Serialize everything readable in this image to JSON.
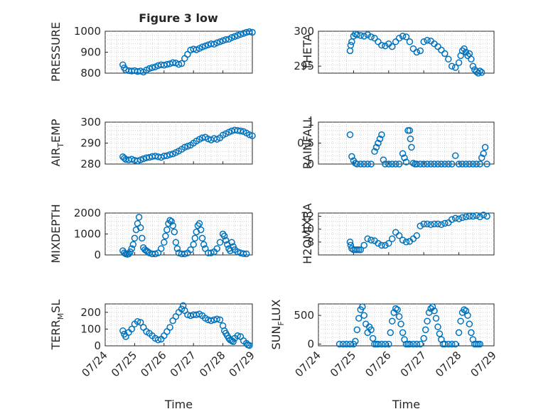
{
  "figure": {
    "title": "Figure 3 low",
    "xlabel": "Time",
    "xticklabels": [
      "07/24",
      "07/25",
      "07/26",
      "07/27",
      "07/28",
      "07/29"
    ],
    "marker_color": "#0072BD"
  },
  "chart_data": [
    {
      "type": "scatter",
      "name": "pressure",
      "ylabel_main": "PRESSURE",
      "ylabel_sub": "",
      "ylabel_tail": "",
      "title": "Figure 3 low",
      "xlabel": "",
      "xlim": [
        0,
        5
      ],
      "ylim": [
        800,
        1000
      ],
      "yticks": [
        800,
        900,
        1000
      ],
      "grid": true,
      "x": [
        0.6,
        0.65,
        0.7,
        0.8,
        0.9,
        1.0,
        1.1,
        1.2,
        1.3,
        1.4,
        1.5,
        1.6,
        1.7,
        1.8,
        1.9,
        2.0,
        2.1,
        2.2,
        2.3,
        2.4,
        2.5,
        2.6,
        2.7,
        2.8,
        2.9,
        3.0,
        3.1,
        3.2,
        3.3,
        3.4,
        3.5,
        3.6,
        3.7,
        3.8,
        3.9,
        4.0,
        4.1,
        4.2,
        4.3,
        4.4,
        4.5,
        4.6,
        4.7,
        4.8,
        4.9,
        5.0
      ],
      "y": [
        840,
        825,
        815,
        812,
        810,
        812,
        808,
        810,
        805,
        815,
        822,
        826,
        830,
        836,
        840,
        838,
        842,
        845,
        850,
        848,
        842,
        846,
        870,
        890,
        910,
        915,
        912,
        918,
        925,
        930,
        935,
        940,
        938,
        945,
        950,
        955,
        960,
        962,
        970,
        975,
        980,
        985,
        990,
        995,
        998,
        995
      ]
    },
    {
      "type": "scatter",
      "name": "theta",
      "ylabel_main": "THETA",
      "ylabel_sub": "",
      "ylabel_tail": "",
      "title": "",
      "xlabel": "",
      "xlim": [
        0,
        5
      ],
      "ylim": [
        294,
        300
      ],
      "yticks": [
        295,
        300
      ],
      "grid": true,
      "x": [
        0.9,
        0.92,
        0.95,
        1.0,
        1.05,
        1.1,
        1.2,
        1.3,
        1.4,
        1.5,
        1.6,
        1.7,
        1.8,
        1.9,
        2.0,
        2.1,
        2.2,
        2.3,
        2.4,
        2.5,
        2.6,
        2.7,
        2.8,
        2.9,
        3.0,
        3.1,
        3.2,
        3.3,
        3.4,
        3.5,
        3.6,
        3.7,
        3.8,
        3.9,
        4.0,
        4.05,
        4.1,
        4.15,
        4.2,
        4.25,
        4.3,
        4.35,
        4.4,
        4.45,
        4.5,
        4.55,
        4.6,
        4.65
      ],
      "y": [
        297.2,
        298.0,
        298.5,
        299.3,
        299.6,
        299.5,
        299.4,
        299.3,
        299.5,
        299.2,
        299.0,
        298.5,
        298.0,
        297.9,
        298.2,
        297.8,
        298.5,
        299.0,
        299.3,
        299.2,
        298.5,
        297.5,
        297.0,
        297.2,
        298.5,
        298.7,
        298.6,
        298.2,
        297.8,
        297.3,
        296.8,
        296.0,
        295.0,
        294.8,
        295.5,
        296.5,
        297.2,
        297.5,
        297.0,
        296.5,
        296.8,
        296.0,
        295.0,
        294.5,
        294.2,
        294.0,
        294.3,
        294.1
      ]
    },
    {
      "type": "scatter",
      "name": "air_temp",
      "ylabel_main": "AIR",
      "ylabel_sub": "T",
      "ylabel_tail": "EMP",
      "title": "",
      "xlabel": "",
      "xlim": [
        0,
        5
      ],
      "ylim": [
        280,
        300
      ],
      "yticks": [
        280,
        290,
        300
      ],
      "grid": true,
      "x": [
        0.6,
        0.65,
        0.7,
        0.8,
        0.9,
        1.0,
        1.1,
        1.2,
        1.3,
        1.4,
        1.5,
        1.6,
        1.7,
        1.8,
        1.9,
        2.0,
        2.1,
        2.2,
        2.3,
        2.4,
        2.5,
        2.6,
        2.7,
        2.8,
        2.9,
        3.0,
        3.1,
        3.2,
        3.3,
        3.4,
        3.5,
        3.6,
        3.7,
        3.8,
        3.9,
        4.0,
        4.1,
        4.2,
        4.3,
        4.4,
        4.5,
        4.6,
        4.7,
        4.8,
        4.9,
        5.0
      ],
      "y": [
        283.5,
        282.8,
        282.2,
        282.0,
        282.3,
        281.8,
        281.5,
        282.0,
        282.5,
        283.0,
        283.2,
        283.6,
        283.8,
        283.5,
        283.2,
        283.8,
        284.0,
        284.5,
        284.8,
        285.5,
        286.2,
        287.0,
        288.0,
        288.5,
        289.0,
        290.0,
        291.0,
        291.8,
        292.5,
        292.8,
        292.0,
        291.5,
        292.2,
        291.8,
        292.5,
        293.8,
        294.5,
        295.2,
        295.8,
        296.2,
        296.0,
        295.8,
        295.5,
        294.8,
        294.0,
        293.5
      ]
    },
    {
      "type": "scatter",
      "name": "rainfall",
      "ylabel_main": "RAINFALL",
      "ylabel_sub": "",
      "ylabel_tail": "",
      "title": "",
      "xlabel": "",
      "xlim": [
        0,
        5
      ],
      "ylim": [
        0,
        1
      ],
      "yticks": [
        0,
        0.5,
        1
      ],
      "ytick_labels": [
        "0",
        "0.5",
        "1"
      ],
      "grid": true,
      "x": [
        0.9,
        0.95,
        1.0,
        1.05,
        1.1,
        1.2,
        1.3,
        1.4,
        1.5,
        1.6,
        1.65,
        1.7,
        1.75,
        1.8,
        1.85,
        1.9,
        2.0,
        2.1,
        2.2,
        2.3,
        2.4,
        2.45,
        2.5,
        2.55,
        2.6,
        2.62,
        2.65,
        2.7,
        2.75,
        2.8,
        2.9,
        3.0,
        3.1,
        3.2,
        3.3,
        3.4,
        3.5,
        3.6,
        3.7,
        3.8,
        3.9,
        4.0,
        4.1,
        4.2,
        4.3,
        4.4,
        4.5,
        4.6,
        4.65,
        4.7,
        4.75,
        4.8
      ],
      "y": [
        0.7,
        0.18,
        0.08,
        0.02,
        0,
        0,
        0,
        0,
        0,
        0.3,
        0.4,
        0.5,
        0.6,
        0.7,
        0.1,
        0,
        0,
        0,
        0,
        0,
        0.25,
        0.15,
        0.05,
        0.8,
        0.8,
        0.6,
        0.4,
        0.02,
        0,
        0,
        0,
        0,
        0,
        0,
        0,
        0,
        0,
        0,
        0,
        0,
        0.2,
        0,
        0,
        0,
        0,
        0,
        0,
        0,
        0.15,
        0.25,
        0.4,
        0
      ]
    },
    {
      "type": "scatter",
      "name": "mixdepth",
      "ylabel_main": "MIXDEPTH",
      "ylabel_sub": "",
      "ylabel_tail": "",
      "title": "",
      "xlabel": "",
      "xlim": [
        0,
        5
      ],
      "ylim": [
        0,
        2000
      ],
      "yticks": [
        0,
        1000,
        2000
      ],
      "grid": true,
      "x": [
        0.6,
        0.65,
        0.7,
        0.75,
        0.8,
        0.85,
        0.9,
        0.95,
        1.0,
        1.05,
        1.1,
        1.15,
        1.2,
        1.25,
        1.3,
        1.35,
        1.4,
        1.45,
        1.5,
        1.6,
        1.7,
        1.8,
        1.9,
        2.0,
        2.05,
        2.1,
        2.15,
        2.2,
        2.25,
        2.3,
        2.35,
        2.4,
        2.45,
        2.5,
        2.6,
        2.7,
        2.8,
        2.9,
        3.0,
        3.05,
        3.1,
        3.15,
        3.2,
        3.25,
        3.3,
        3.35,
        3.4,
        3.5,
        3.6,
        3.7,
        3.8,
        3.9,
        4.0,
        4.05,
        4.1,
        4.15,
        4.2,
        4.25,
        4.3,
        4.35,
        4.4,
        4.5,
        4.6,
        4.7,
        4.8
      ],
      "y": [
        200,
        100,
        50,
        30,
        50,
        150,
        300,
        500,
        800,
        1200,
        1500,
        1800,
        1300,
        800,
        350,
        250,
        200,
        150,
        100,
        50,
        50,
        100,
        300,
        600,
        900,
        1200,
        1500,
        1650,
        1600,
        1400,
        1100,
        600,
        300,
        100,
        50,
        50,
        100,
        250,
        500,
        800,
        1100,
        1400,
        1500,
        1200,
        800,
        500,
        300,
        100,
        100,
        150,
        300,
        600,
        1000,
        900,
        700,
        500,
        300,
        200,
        600,
        400,
        250,
        150,
        100,
        60,
        50
      ]
    },
    {
      "type": "scatter",
      "name": "h2omixra",
      "ylabel_main": "H2OMIXRA",
      "ylabel_sub": "",
      "ylabel_tail": "",
      "title": "",
      "xlabel": "",
      "xlim": [
        0,
        5
      ],
      "ylim": [
        6,
        12.5
      ],
      "yticks": [
        8,
        10,
        12
      ],
      "grid": true,
      "x": [
        0.9,
        0.92,
        0.95,
        1.0,
        1.05,
        1.1,
        1.15,
        1.2,
        1.3,
        1.4,
        1.5,
        1.6,
        1.7,
        1.8,
        1.9,
        2.0,
        2.1,
        2.2,
        2.3,
        2.4,
        2.5,
        2.6,
        2.7,
        2.8,
        2.9,
        3.0,
        3.1,
        3.2,
        3.3,
        3.4,
        3.5,
        3.6,
        3.7,
        3.8,
        3.9,
        4.0,
        4.1,
        4.2,
        4.3,
        4.4,
        4.5,
        4.6,
        4.7,
        4.8
      ],
      "y": [
        8,
        7.5,
        7,
        6.8,
        6.8,
        6.8,
        6.8,
        6.8,
        7.5,
        8.5,
        8.3,
        8.2,
        7.8,
        7.5,
        7.5,
        7.8,
        8.5,
        9.5,
        9,
        8.3,
        8.0,
        8.1,
        8.5,
        9.0,
        10.5,
        10.8,
        10.8,
        10.7,
        10.8,
        10.8,
        10.7,
        10.9,
        11.0,
        11.5,
        11.7,
        11.6,
        11.8,
        11.9,
        12,
        12,
        12.1,
        11.9,
        12.2,
        12
      ]
    },
    {
      "type": "scatter",
      "name": "terr_msl",
      "ylabel_main": "TERR",
      "ylabel_sub": "M",
      "ylabel_tail": "SL",
      "title": "",
      "xlabel": "Time",
      "xlim": [
        0,
        5
      ],
      "ylim": [
        0,
        250
      ],
      "yticks": [
        0,
        100,
        200
      ],
      "grid": true,
      "x": [
        0.6,
        0.65,
        0.7,
        0.8,
        0.9,
        1.0,
        1.1,
        1.2,
        1.3,
        1.4,
        1.5,
        1.6,
        1.7,
        1.8,
        1.9,
        2.0,
        2.1,
        2.2,
        2.3,
        2.4,
        2.5,
        2.6,
        2.65,
        2.7,
        2.8,
        2.9,
        3.0,
        3.1,
        3.2,
        3.3,
        3.4,
        3.5,
        3.6,
        3.7,
        3.8,
        3.9,
        4.0,
        4.05,
        4.1,
        4.15,
        4.2,
        4.25,
        4.3,
        4.35,
        4.4,
        4.5,
        4.6,
        4.7,
        4.8,
        4.85,
        4.9
      ],
      "y": [
        90,
        70,
        55,
        80,
        100,
        130,
        145,
        140,
        110,
        85,
        75,
        60,
        45,
        35,
        40,
        60,
        85,
        110,
        150,
        175,
        200,
        220,
        240,
        210,
        185,
        180,
        185,
        185,
        190,
        180,
        165,
        155,
        150,
        155,
        160,
        155,
        120,
        90,
        75,
        60,
        45,
        35,
        30,
        25,
        45,
        60,
        55,
        30,
        15,
        5,
        2
      ]
    },
    {
      "type": "scatter",
      "name": "sun_flux",
      "ylabel_main": "SUN",
      "ylabel_sub": "F",
      "ylabel_tail": "LUX",
      "title": "",
      "xlabel": "Time",
      "xlim": [
        0,
        5
      ],
      "ylim": [
        -30,
        700
      ],
      "yticks": [
        0,
        500
      ],
      "grid": true,
      "x": [
        0.6,
        0.7,
        0.8,
        0.9,
        1.0,
        1.05,
        1.1,
        1.15,
        1.2,
        1.25,
        1.3,
        1.35,
        1.4,
        1.45,
        1.5,
        1.55,
        1.6,
        1.65,
        1.7,
        1.8,
        1.9,
        2.0,
        2.05,
        2.1,
        2.15,
        2.2,
        2.25,
        2.3,
        2.35,
        2.4,
        2.45,
        2.5,
        2.55,
        2.6,
        2.7,
        2.8,
        2.9,
        3.0,
        3.05,
        3.1,
        3.15,
        3.2,
        3.25,
        3.3,
        3.35,
        3.4,
        3.45,
        3.5,
        3.55,
        3.6,
        3.7,
        3.8,
        3.9,
        4.0,
        4.05,
        4.1,
        4.15,
        4.2,
        4.25,
        4.3,
        4.35,
        4.4,
        4.45,
        4.5,
        4.55,
        4.6
      ],
      "y": [
        0,
        0,
        0,
        0,
        0,
        50,
        250,
        450,
        600,
        650,
        500,
        350,
        200,
        300,
        250,
        100,
        0,
        0,
        0,
        0,
        0,
        0,
        200,
        400,
        550,
        620,
        600,
        480,
        350,
        200,
        80,
        0,
        0,
        0,
        0,
        0,
        0,
        100,
        250,
        400,
        550,
        620,
        650,
        580,
        450,
        300,
        180,
        80,
        0,
        0,
        0,
        0,
        0,
        200,
        400,
        550,
        600,
        580,
        500,
        350,
        200,
        80,
        0,
        0,
        0,
        0
      ]
    }
  ]
}
